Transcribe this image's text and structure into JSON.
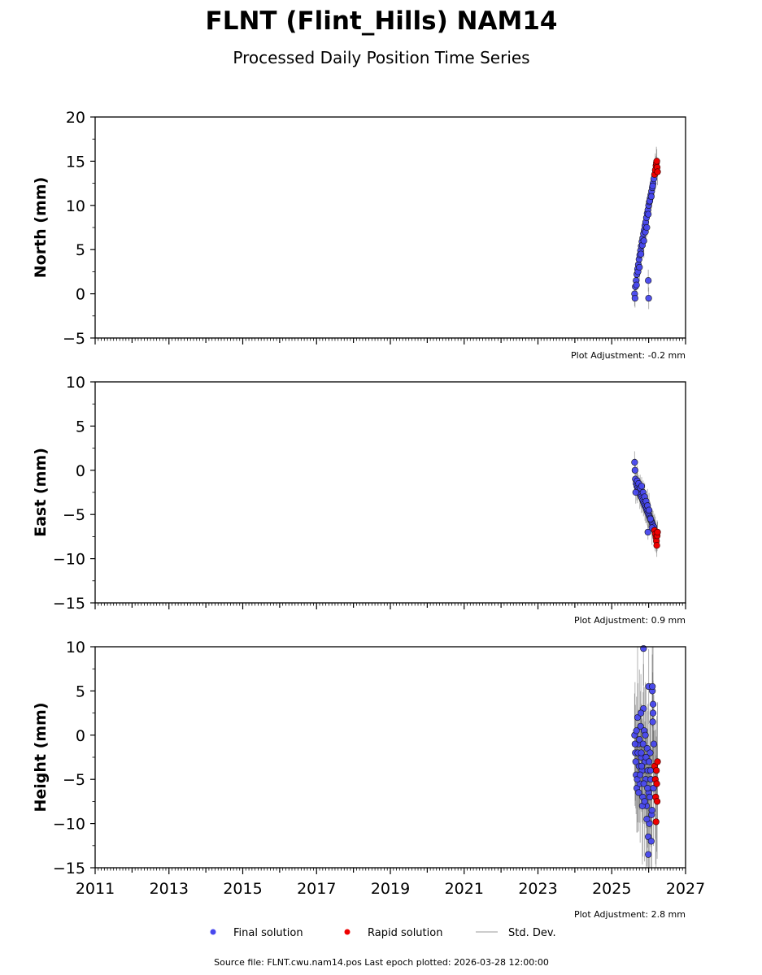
{
  "header": {
    "title": "FLNT (Flint_Hills) NAM14",
    "subtitle": "Processed Daily Position Time Series"
  },
  "footer": {
    "text": "Source file: FLNT.cwu.nam14.pos  Last epoch plotted: 2026-03-28 12:00:00"
  },
  "legend": {
    "final_label": "Final solution",
    "rapid_label": "Rapid solution",
    "std_label": "Std. Dev."
  },
  "colors": {
    "final": "#4848ee",
    "rapid": "#ee0000",
    "std": "#000000"
  },
  "chart_data": [
    {
      "type": "scatter",
      "ylabel": "North (mm)",
      "adjustment_label": "Plot Adjustment: -0.2 mm",
      "xlim": [
        2011,
        2027
      ],
      "ylim": [
        -5,
        20
      ],
      "yticks": [
        -5,
        0,
        5,
        10,
        15,
        20
      ],
      "xticks": [
        2011,
        2013,
        2015,
        2017,
        2019,
        2021,
        2023,
        2025,
        2027
      ],
      "show_xtick_labels": false,
      "final": {
        "x": [
          2025.62,
          2025.64,
          2025.66,
          2025.68,
          2025.7,
          2025.72,
          2025.74,
          2025.76,
          2025.78,
          2025.8,
          2025.82,
          2025.84,
          2025.86,
          2025.88,
          2025.9,
          2025.92,
          2025.94,
          2025.96,
          2025.98,
          2026.0,
          2026.02,
          2026.04,
          2026.06,
          2026.08,
          2026.1,
          2026.12,
          2026.14,
          2025.63,
          2025.67,
          2025.71,
          2025.75,
          2025.79,
          2025.83,
          2025.87,
          2025.91,
          2025.95,
          2025.99,
          2026.03,
          2026.07,
          2026.11,
          2025.99,
          2026.0
        ],
        "y": [
          0.0,
          0.8,
          1.5,
          2.2,
          2.8,
          3.3,
          3.9,
          4.4,
          4.9,
          5.4,
          5.9,
          6.3,
          6.8,
          7.2,
          7.7,
          8.1,
          8.6,
          9.1,
          9.5,
          10.0,
          10.4,
          10.8,
          11.2,
          11.6,
          12.0,
          12.5,
          13.0,
          -0.5,
          1.0,
          2.5,
          3.0,
          4.5,
          5.5,
          6.0,
          7.0,
          7.5,
          9.0,
          10.5,
          11.0,
          12.2,
          1.5,
          -0.5
        ]
      },
      "rapid": {
        "x": [
          2026.16,
          2026.18,
          2026.2,
          2026.21,
          2026.22,
          2026.23,
          2026.24
        ],
        "y": [
          13.5,
          14.0,
          14.5,
          14.8,
          15.0,
          14.3,
          13.8
        ]
      }
    },
    {
      "type": "scatter",
      "ylabel": "East (mm)",
      "adjustment_label": "Plot Adjustment: 0.9 mm",
      "xlim": [
        2011,
        2027
      ],
      "ylim": [
        -15,
        10
      ],
      "yticks": [
        -15,
        -10,
        -5,
        0,
        5,
        10
      ],
      "xticks": [
        2011,
        2013,
        2015,
        2017,
        2019,
        2021,
        2023,
        2025,
        2027
      ],
      "show_xtick_labels": false,
      "final": {
        "x": [
          2025.62,
          2025.63,
          2025.64,
          2025.66,
          2025.68,
          2025.7,
          2025.72,
          2025.74,
          2025.76,
          2025.78,
          2025.8,
          2025.82,
          2025.84,
          2025.86,
          2025.88,
          2025.9,
          2025.92,
          2025.94,
          2025.96,
          2025.98,
          2026.0,
          2026.02,
          2026.04,
          2026.06,
          2026.08,
          2026.1,
          2026.12,
          2026.14,
          2025.65,
          2025.69,
          2025.73,
          2025.77,
          2025.81,
          2025.85,
          2025.89,
          2025.93,
          2025.97,
          2026.01,
          2026.05,
          2026.09,
          2025.98
        ],
        "y": [
          0.9,
          0.0,
          -1.0,
          -1.5,
          -1.8,
          -2.0,
          -2.2,
          -2.4,
          -2.6,
          -2.8,
          -3.0,
          -3.2,
          -3.4,
          -3.6,
          -3.8,
          -4.0,
          -4.2,
          -4.4,
          -4.6,
          -4.8,
          -5.0,
          -5.2,
          -5.4,
          -5.6,
          -5.8,
          -6.0,
          -6.2,
          -6.4,
          -2.5,
          -1.2,
          -1.5,
          -2.0,
          -1.8,
          -2.5,
          -3.0,
          -3.5,
          -4.0,
          -4.5,
          -5.5,
          -6.5,
          -7.0
        ]
      },
      "rapid": {
        "x": [
          2026.16,
          2026.18,
          2026.2,
          2026.21,
          2026.22,
          2026.23,
          2026.24
        ],
        "y": [
          -6.8,
          -7.2,
          -7.6,
          -8.0,
          -8.5,
          -7.4,
          -7.0
        ]
      }
    },
    {
      "type": "scatter",
      "ylabel": "Height (mm)",
      "adjustment_label": "Plot Adjustment: 2.8 mm",
      "xlim": [
        2011,
        2027
      ],
      "ylim": [
        -15,
        10
      ],
      "yticks": [
        -15,
        -10,
        -5,
        0,
        5,
        10
      ],
      "xticks": [
        2011,
        2013,
        2015,
        2017,
        2019,
        2021,
        2023,
        2025,
        2027
      ],
      "show_xtick_labels": true,
      "final": {
        "x": [
          2025.62,
          2025.64,
          2025.66,
          2025.68,
          2025.7,
          2025.72,
          2025.74,
          2025.76,
          2025.78,
          2025.8,
          2025.82,
          2025.84,
          2025.86,
          2025.88,
          2025.9,
          2025.92,
          2025.94,
          2025.96,
          2025.98,
          2026.0,
          2026.02,
          2026.04,
          2026.06,
          2026.08,
          2026.1,
          2026.12,
          2026.14,
          2025.63,
          2025.65,
          2025.67,
          2025.69,
          2025.71,
          2025.73,
          2025.75,
          2025.77,
          2025.79,
          2025.81,
          2025.83,
          2025.85,
          2025.87,
          2025.89,
          2025.91,
          2025.93,
          2025.95,
          2025.97,
          2025.99,
          2026.01,
          2026.03,
          2026.05,
          2026.07,
          2026.09,
          2026.11,
          2026.13,
          2025.86,
          2025.99,
          2026.0,
          2026.1,
          2026.12,
          2025.8
        ],
        "y": [
          0.0,
          -2.0,
          -4.5,
          -6.0,
          2.0,
          -1.0,
          -3.5,
          -5.5,
          1.0,
          -2.5,
          -4.0,
          -7.0,
          3.0,
          0.5,
          -3.0,
          -5.0,
          -8.0,
          -1.5,
          -4.0,
          -6.5,
          -10.0,
          -2.0,
          -5.0,
          -9.0,
          5.0,
          3.5,
          -1.0,
          -1.0,
          -3.0,
          0.5,
          -5.0,
          -2.0,
          -6.5,
          -0.5,
          -4.5,
          2.5,
          -3.5,
          -8.0,
          -1.0,
          -5.5,
          -7.5,
          0.0,
          -2.5,
          -9.5,
          -6.0,
          -11.5,
          -3.0,
          -7.0,
          -4.0,
          -12.0,
          -8.5,
          1.5,
          -6.0,
          9.8,
          -13.5,
          5.5,
          5.5,
          2.5,
          -2.0
        ]
      },
      "rapid": {
        "x": [
          2026.16,
          2026.18,
          2026.19,
          2026.2,
          2026.21,
          2026.22,
          2026.23,
          2026.24
        ],
        "y": [
          -3.5,
          -5.0,
          -7.0,
          -9.8,
          -4.0,
          -5.5,
          -7.5,
          -3.0
        ]
      }
    }
  ]
}
